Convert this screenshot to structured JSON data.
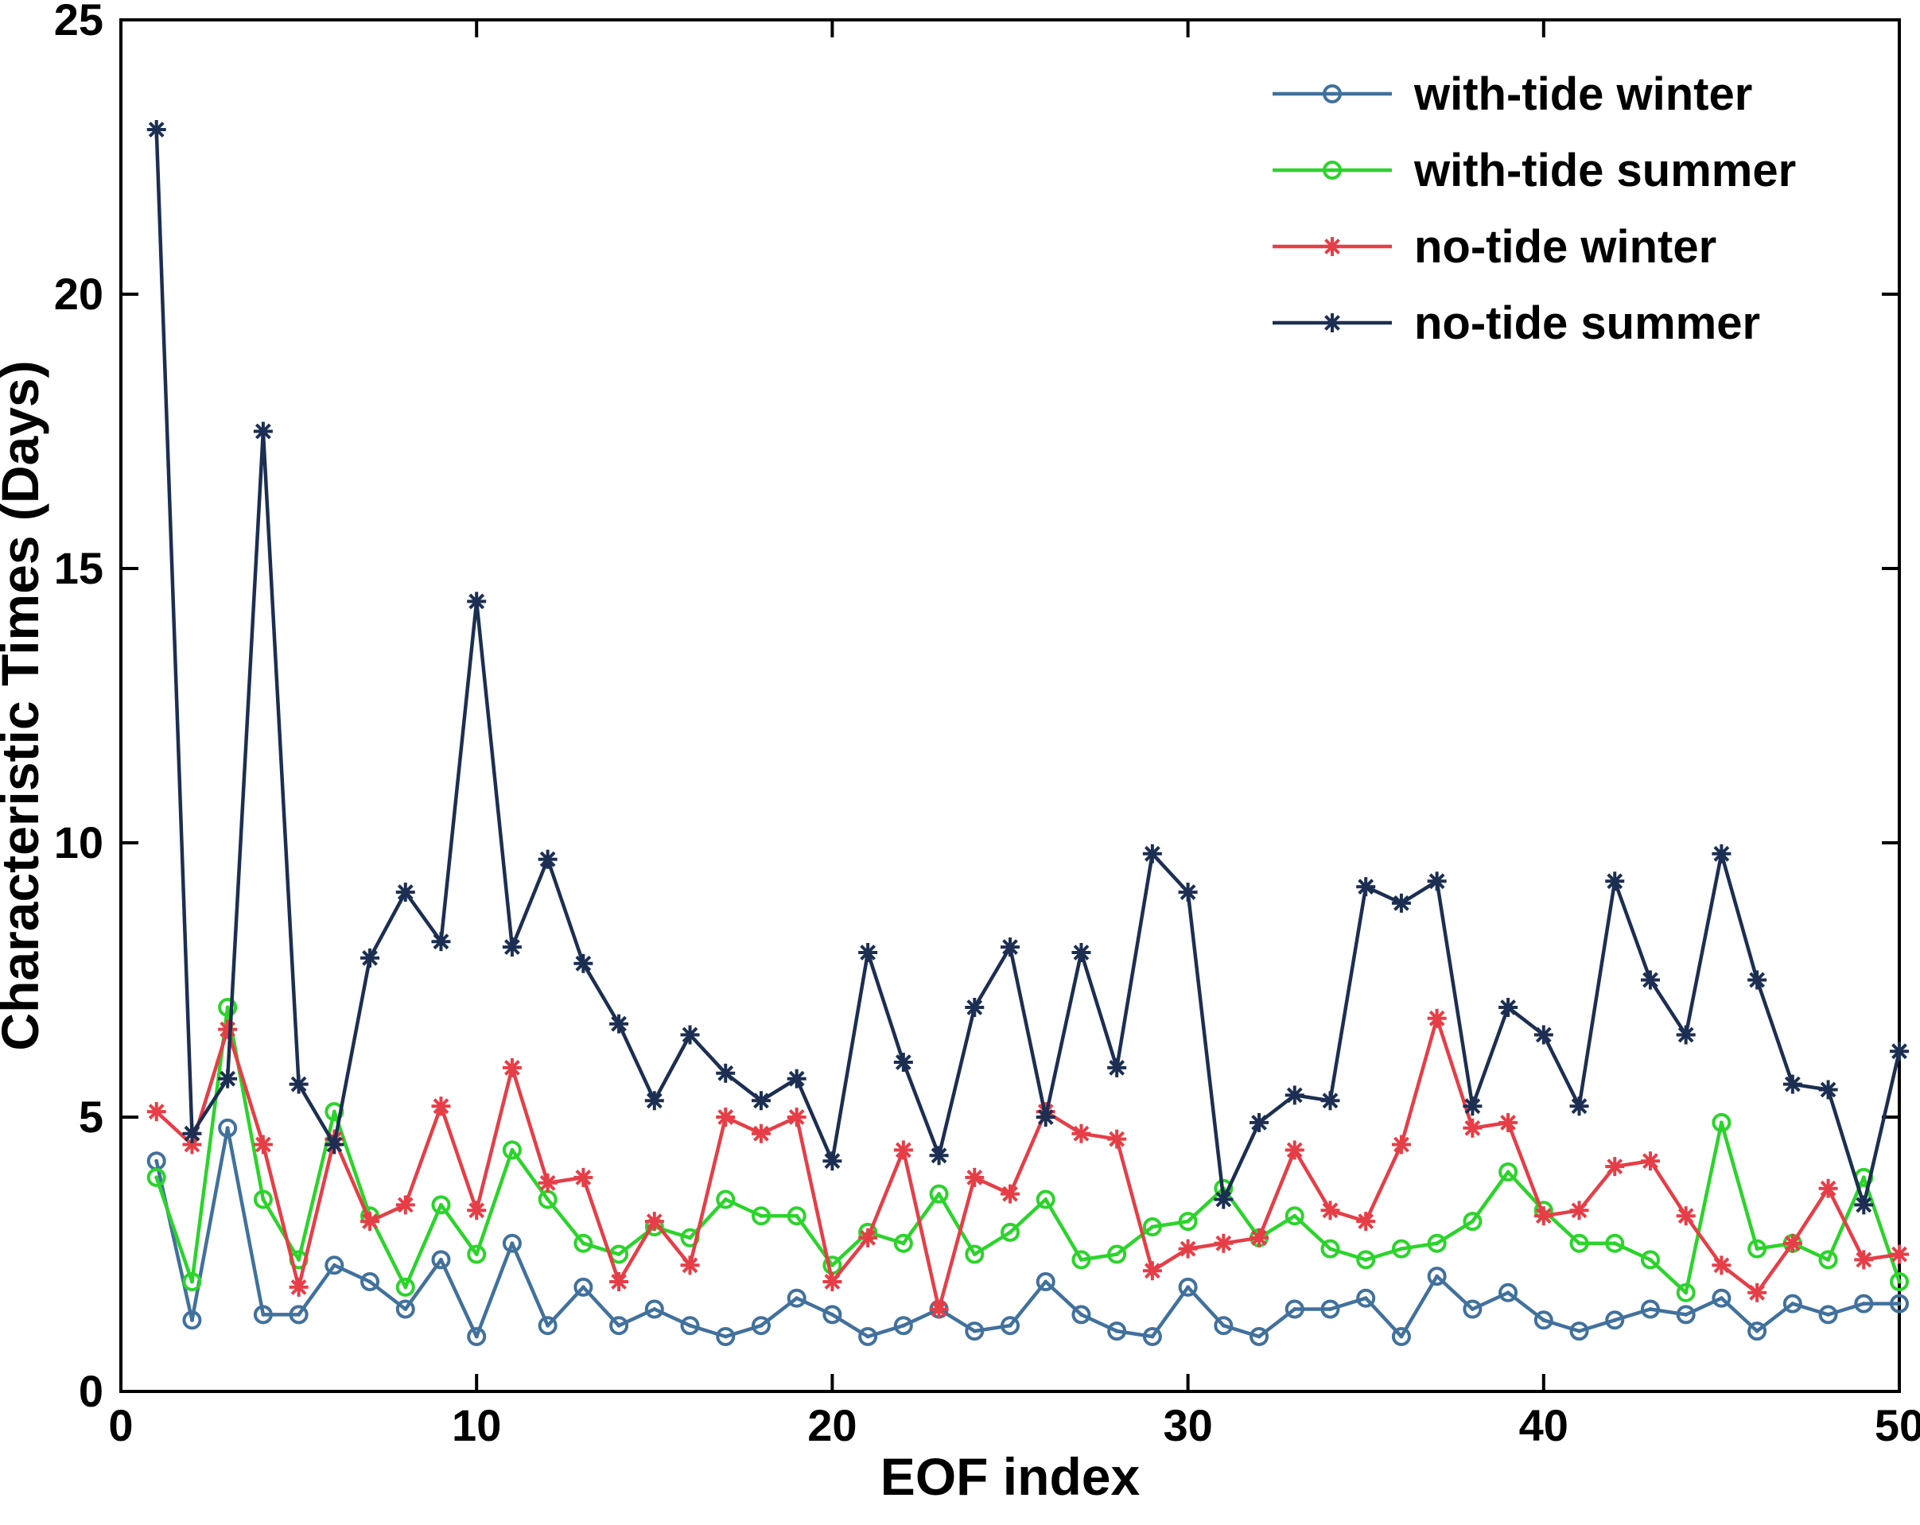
{
  "chart_data": {
    "type": "line",
    "title": "",
    "xlabel": "EOF index",
    "ylabel": "Characteristic Times (Days)",
    "xlim": [
      0,
      50
    ],
    "ylim": [
      0,
      25
    ],
    "xticks": [
      0,
      10,
      20,
      30,
      40,
      50
    ],
    "yticks": [
      0,
      5,
      10,
      15,
      20,
      25
    ],
    "grid": false,
    "legend_position": "top-right",
    "x": [
      1,
      2,
      3,
      4,
      5,
      6,
      7,
      8,
      9,
      10,
      11,
      12,
      13,
      14,
      15,
      16,
      17,
      18,
      19,
      20,
      21,
      22,
      23,
      24,
      25,
      26,
      27,
      28,
      29,
      30,
      31,
      32,
      33,
      34,
      35,
      36,
      37,
      38,
      39,
      40,
      41,
      42,
      43,
      44,
      45,
      46,
      47,
      48,
      49,
      50
    ],
    "series": [
      {
        "name": "with-tide winter",
        "color": "#41719c",
        "marker": "circle",
        "values": [
          4.2,
          1.3,
          4.8,
          1.4,
          1.4,
          2.3,
          2.0,
          1.5,
          2.4,
          1.0,
          2.7,
          1.2,
          1.9,
          1.2,
          1.5,
          1.2,
          1.0,
          1.2,
          1.7,
          1.4,
          1.0,
          1.2,
          1.5,
          1.1,
          1.2,
          2.0,
          1.4,
          1.1,
          1.0,
          1.9,
          1.2,
          1.0,
          1.5,
          1.5,
          1.7,
          1.0,
          2.1,
          1.5,
          1.8,
          1.3,
          1.1,
          1.3,
          1.5,
          1.4,
          1.7,
          1.1,
          1.6,
          1.4,
          1.6,
          1.6
        ]
      },
      {
        "name": "with-tide summer",
        "color": "#2bd42b",
        "marker": "circle",
        "values": [
          3.9,
          2.0,
          7.0,
          3.5,
          2.4,
          5.1,
          3.2,
          1.9,
          3.4,
          2.5,
          4.4,
          3.5,
          2.7,
          2.5,
          3.0,
          2.8,
          3.5,
          3.2,
          3.2,
          2.3,
          2.9,
          2.7,
          3.6,
          2.5,
          2.9,
          3.5,
          2.4,
          2.5,
          3.0,
          3.1,
          3.7,
          2.8,
          3.2,
          2.6,
          2.4,
          2.6,
          2.7,
          3.1,
          4.0,
          3.3,
          2.7,
          2.7,
          2.4,
          1.8,
          4.9,
          2.6,
          2.7,
          2.4,
          3.9,
          2.0
        ]
      },
      {
        "name": "no-tide winter",
        "color": "#e63e47",
        "marker": "asterisk",
        "values": [
          5.1,
          4.5,
          6.6,
          4.5,
          1.9,
          4.6,
          3.1,
          3.4,
          5.2,
          3.3,
          5.9,
          3.8,
          3.9,
          2.0,
          3.1,
          2.3,
          5.0,
          4.7,
          5.0,
          2.0,
          2.8,
          4.4,
          1.5,
          3.9,
          3.6,
          5.1,
          4.7,
          4.6,
          2.2,
          2.6,
          2.7,
          2.8,
          4.4,
          3.3,
          3.1,
          4.5,
          6.8,
          4.8,
          4.9,
          3.2,
          3.3,
          4.1,
          4.2,
          3.2,
          2.3,
          1.8,
          2.7,
          3.7,
          2.4,
          2.5
        ]
      },
      {
        "name": "no-tide summer",
        "color": "#1c2f52",
        "marker": "asterisk",
        "values": [
          23.0,
          4.7,
          5.7,
          17.5,
          5.6,
          4.5,
          7.9,
          9.1,
          8.2,
          14.4,
          8.1,
          9.7,
          7.8,
          6.7,
          5.3,
          6.5,
          5.8,
          5.3,
          5.7,
          4.2,
          8.0,
          6.0,
          4.3,
          7.0,
          8.1,
          5.0,
          8.0,
          5.9,
          9.8,
          9.1,
          3.5,
          4.9,
          5.4,
          5.3,
          9.2,
          8.9,
          9.3,
          5.2,
          7.0,
          6.5,
          5.2,
          9.3,
          7.5,
          6.5,
          9.8,
          7.5,
          5.6,
          5.5,
          3.4,
          6.2
        ]
      }
    ],
    "legend": [
      "with-tide winter",
      "with-tide summer",
      "no-tide winter",
      "no-tide summer"
    ]
  },
  "style": {
    "axis_color": "#000000",
    "background": "#ffffff"
  }
}
